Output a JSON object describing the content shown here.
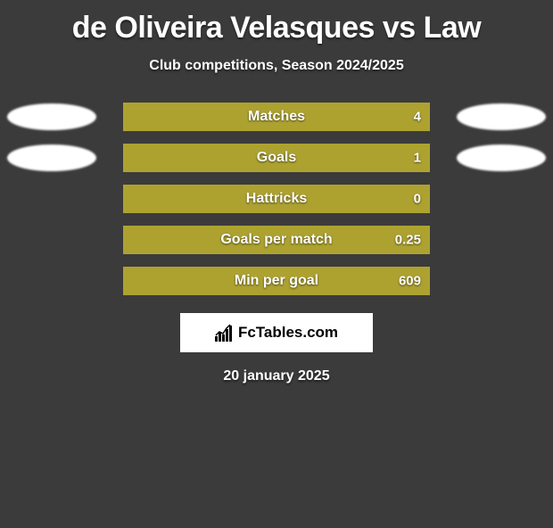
{
  "title": "de Oliveira Velasques vs Law",
  "subtitle": "Club competitions, Season 2024/2025",
  "date": "20 january 2025",
  "logo_text": "FcTables.com",
  "bar_color": "#ada230",
  "bg_color": "#3b3b3b",
  "bars": [
    {
      "label": "Matches",
      "right": "4",
      "fill_pct": 100,
      "show_left_oval": true,
      "show_right_oval": true
    },
    {
      "label": "Goals",
      "right": "1",
      "fill_pct": 100,
      "show_left_oval": true,
      "show_right_oval": true
    },
    {
      "label": "Hattricks",
      "right": "0",
      "fill_pct": 100,
      "show_left_oval": false,
      "show_right_oval": false
    },
    {
      "label": "Goals per match",
      "right": "0.25",
      "fill_pct": 100,
      "show_left_oval": false,
      "show_right_oval": false
    },
    {
      "label": "Min per goal",
      "right": "609",
      "fill_pct": 100,
      "show_left_oval": false,
      "show_right_oval": false
    }
  ]
}
